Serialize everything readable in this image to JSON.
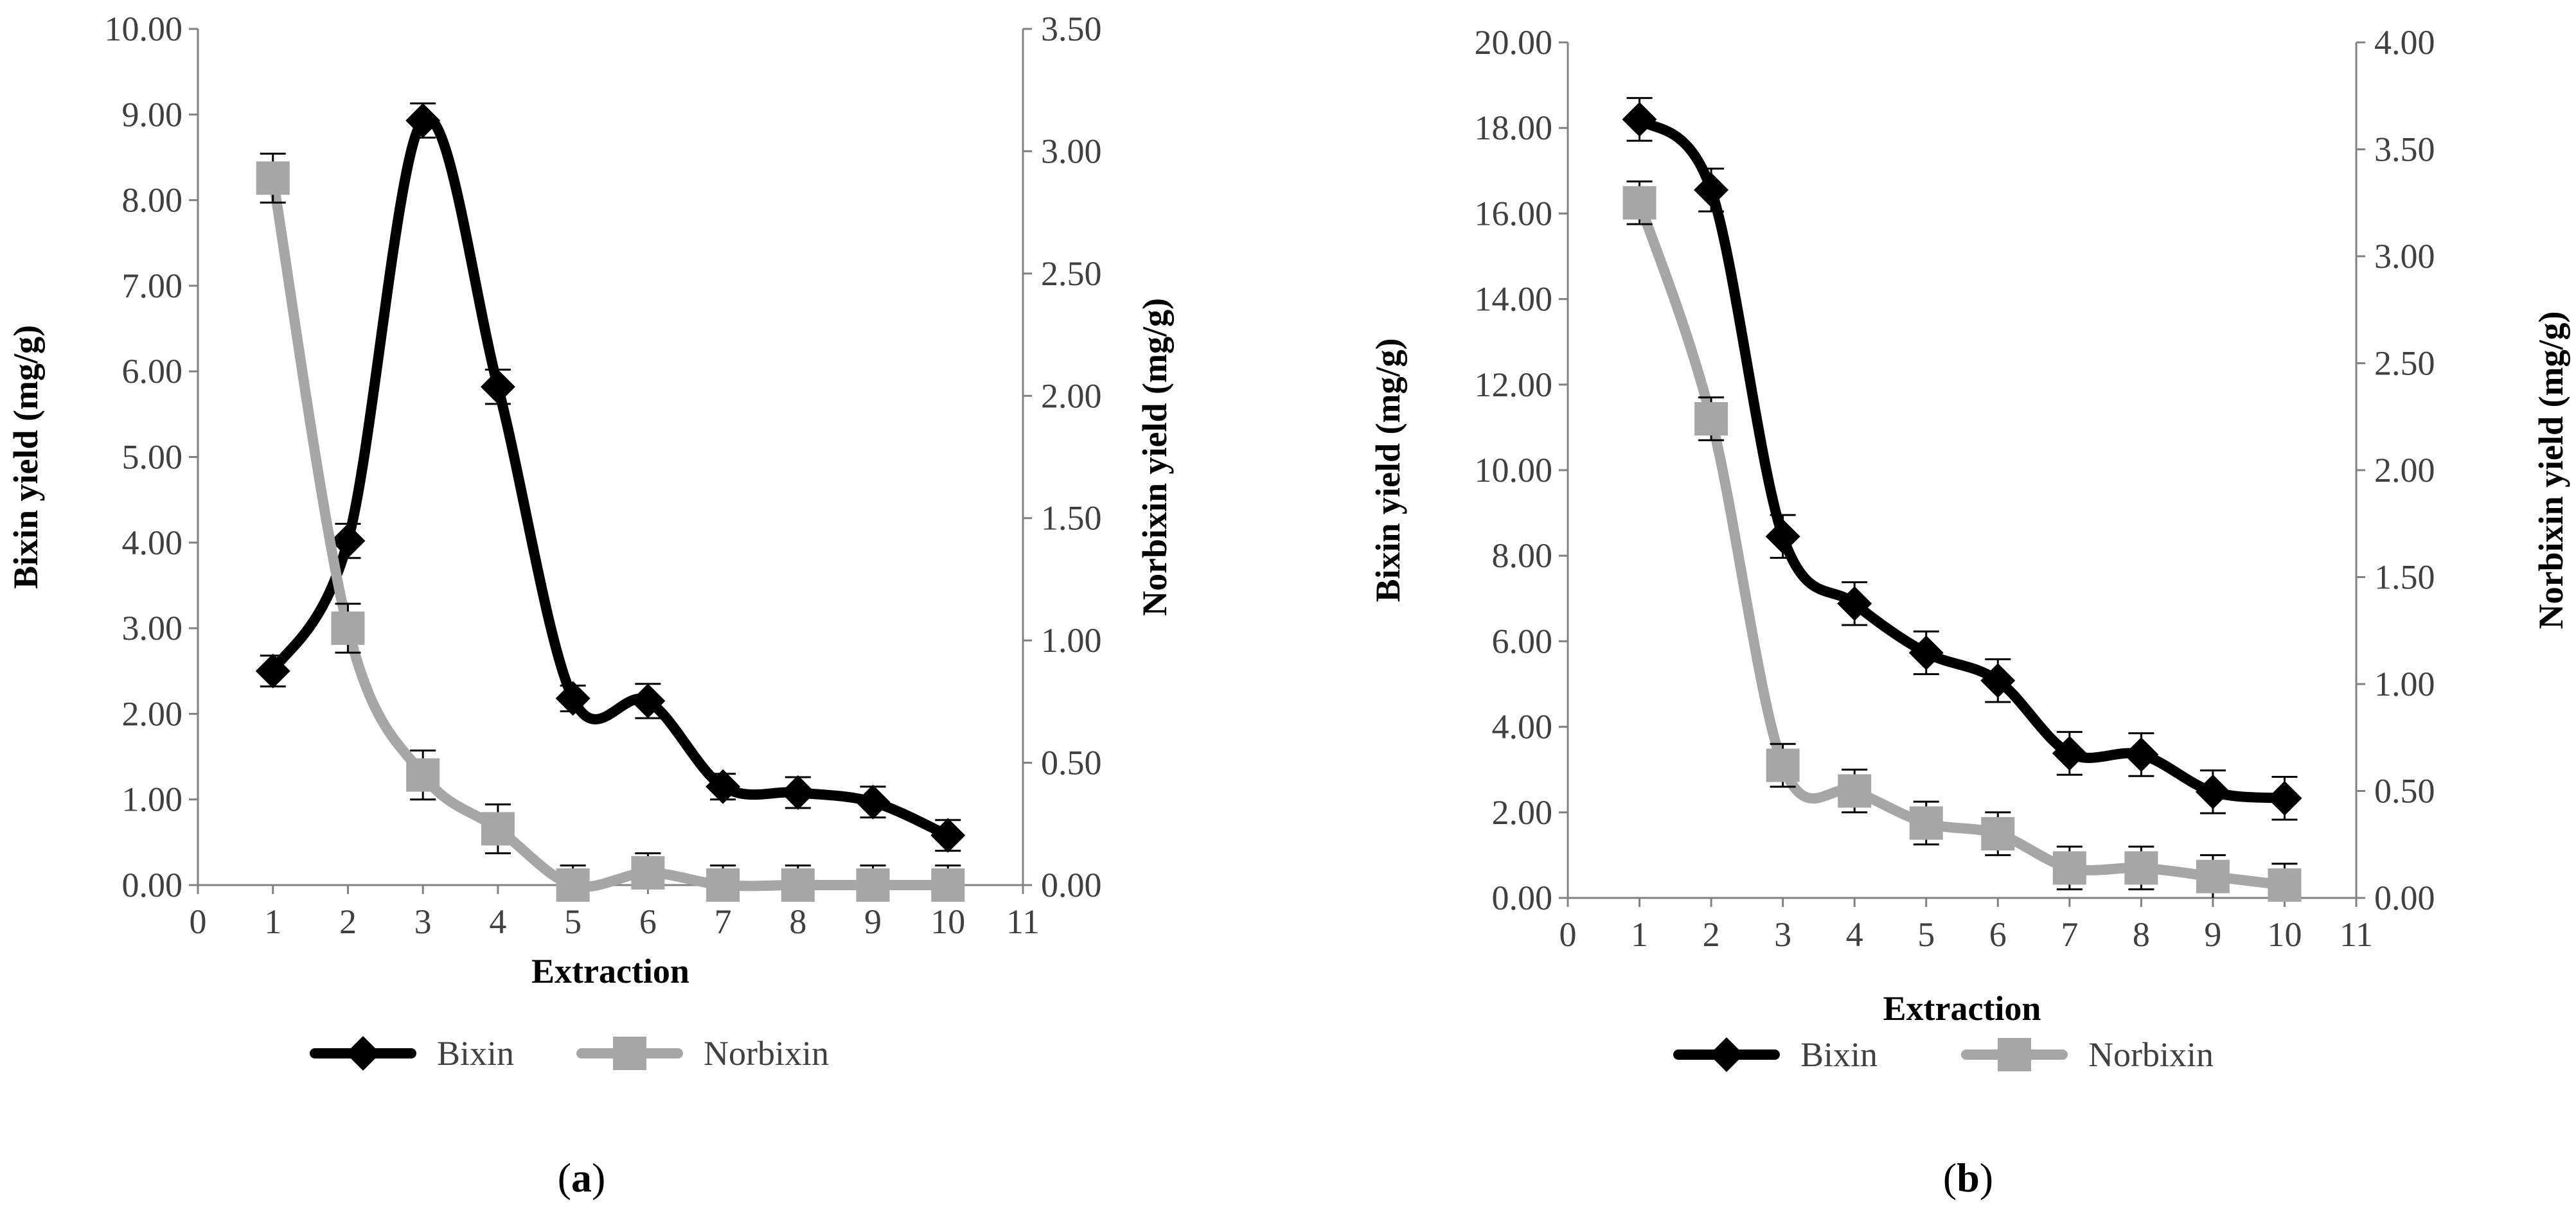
{
  "chart_data": [
    {
      "type": "line",
      "panel_label": "a",
      "xlabel": "Extraction",
      "ylabel": "Bixin yield (mg/g)",
      "y2label": "Norbixin yield (mg/g)",
      "xlim": [
        0,
        11
      ],
      "xticks": [
        "0",
        "1",
        "2",
        "3",
        "4",
        "5",
        "6",
        "7",
        "8",
        "9",
        "10",
        "11"
      ],
      "ylim": [
        0,
        10
      ],
      "yticks": [
        "0.00",
        "1.00",
        "2.00",
        "3.00",
        "4.00",
        "5.00",
        "6.00",
        "7.00",
        "8.00",
        "9.00",
        "10.00"
      ],
      "y2lim": [
        0,
        3.5
      ],
      "y2ticks": [
        "0.00",
        "0.50",
        "1.00",
        "1.50",
        "2.00",
        "2.50",
        "3.00",
        "3.50"
      ],
      "legend_position": "bottom",
      "series": [
        {
          "name": "Bixin",
          "axis": "left",
          "color": "#000000",
          "marker": "diamond",
          "x": [
            1,
            2,
            3,
            4,
            5,
            6,
            7,
            8,
            9,
            10
          ],
          "values": [
            2.5,
            4.02,
            8.93,
            5.82,
            2.18,
            2.15,
            1.15,
            1.08,
            0.97,
            0.58
          ],
          "errors": [
            0.18,
            0.2,
            0.2,
            0.2,
            0.15,
            0.2,
            0.15,
            0.18,
            0.18,
            0.18
          ]
        },
        {
          "name": "Norbixin",
          "axis": "right",
          "color": "#a6a6a6",
          "marker": "square",
          "x": [
            1,
            2,
            3,
            4,
            5,
            6,
            7,
            8,
            9,
            10
          ],
          "values": [
            2.89,
            1.05,
            0.45,
            0.23,
            0.0,
            0.05,
            0.0,
            0.0,
            0.0,
            0.0
          ],
          "errors": [
            0.1,
            0.1,
            0.1,
            0.1,
            0.08,
            0.08,
            0.08,
            0.08,
            0.08,
            0.08
          ]
        }
      ]
    },
    {
      "type": "line",
      "panel_label": "b",
      "xlabel": "Extraction",
      "ylabel": "Bixin yield (mg/g)",
      "y2label": "Norbixin yield (mg/g)",
      "xlim": [
        0,
        11
      ],
      "xticks": [
        "0",
        "1",
        "2",
        "3",
        "4",
        "5",
        "6",
        "7",
        "8",
        "9",
        "10",
        "11"
      ],
      "ylim": [
        0,
        20
      ],
      "yticks": [
        "0.00",
        "2.00",
        "4.00",
        "6.00",
        "8.00",
        "10.00",
        "12.00",
        "14.00",
        "16.00",
        "18.00",
        "20.00"
      ],
      "y2lim": [
        0,
        4
      ],
      "y2ticks": [
        "0.00",
        "0.50",
        "1.00",
        "1.50",
        "2.00",
        "2.50",
        "3.00",
        "3.50",
        "4.00"
      ],
      "legend_position": "bottom",
      "series": [
        {
          "name": "Bixin",
          "axis": "left",
          "color": "#000000",
          "marker": "diamond",
          "x": [
            1,
            2,
            3,
            4,
            5,
            6,
            7,
            8,
            9,
            10
          ],
          "values": [
            18.2,
            16.55,
            8.45,
            6.88,
            5.73,
            5.08,
            3.38,
            3.35,
            2.48,
            2.33
          ],
          "errors": [
            0.5,
            0.5,
            0.5,
            0.5,
            0.5,
            0.5,
            0.5,
            0.5,
            0.5,
            0.5
          ]
        },
        {
          "name": "Norbixin",
          "axis": "right",
          "color": "#a6a6a6",
          "marker": "square",
          "x": [
            1,
            2,
            3,
            4,
            5,
            6,
            7,
            8,
            9,
            10
          ],
          "values": [
            3.25,
            2.24,
            0.62,
            0.5,
            0.35,
            0.3,
            0.14,
            0.14,
            0.1,
            0.06
          ],
          "errors": [
            0.1,
            0.1,
            0.1,
            0.1,
            0.1,
            0.1,
            0.1,
            0.1,
            0.1,
            0.1
          ]
        }
      ]
    }
  ]
}
